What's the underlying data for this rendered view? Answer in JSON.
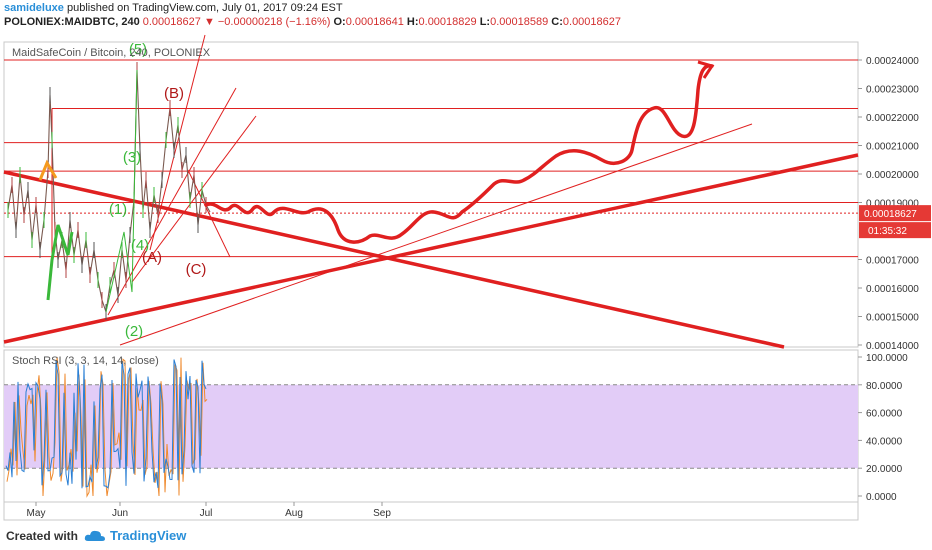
{
  "header": {
    "author": "samideluxe",
    "published_text": "published on TradingView.com, July 01, 2017 09:24 EST",
    "symbol": "POLONIEX:MAIDBTC, 240",
    "last": "0.00018627",
    "change": "▼ −0.00000218 (−1.16%)",
    "o_label": "O:",
    "o": "0.00018641",
    "h_label": "H:",
    "h": "0.00018829",
    "l_label": "L:",
    "l": "0.00018589",
    "c_label": "C:",
    "c": "0.00018627"
  },
  "pane_title": "MaidSafeCoin / Bitcoin, 240, POLONIEX",
  "price_axis": {
    "ticks": [
      "0.00024000",
      "0.00023000",
      "0.00022000",
      "0.00021000",
      "0.00020000",
      "0.00019000",
      "0.00017000",
      "0.00016000",
      "0.00015000",
      "0.00014000"
    ],
    "last_price_badge": "0.00018627",
    "countdown_badge": "01:35:32"
  },
  "time_axis": {
    "ticks": [
      "May",
      "Jun",
      "Jul",
      "Aug",
      "Sep"
    ]
  },
  "wave_labels": {
    "green": [
      "(5)",
      "(3)",
      "(1)",
      "(4)",
      "(2)"
    ],
    "red": [
      "(B)",
      "(A)",
      "(C)"
    ]
  },
  "indicator": {
    "title": "Stoch RSI (3, 3, 14, 14, close)",
    "ticks": [
      "100.0000",
      "80.0000",
      "60.0000",
      "40.0000",
      "20.0000",
      "0.0000"
    ]
  },
  "footer": {
    "created_with": "Created with",
    "brand": "TradingView"
  },
  "colors": {
    "drawing_red": "#e02020",
    "wave_green": "#3ab83a",
    "axis_text": "#333333",
    "band_fill": "#e2ccf7",
    "stoch_k": "#2a7fd4",
    "stoch_d": "#ef8a2e"
  },
  "chart_data": {
    "type": "line",
    "title": "MaidSafeCoin / Bitcoin, 240, POLONIEX",
    "x": [
      "May",
      "Jun",
      "Jul",
      "Aug",
      "Sep"
    ],
    "ylim": [
      0.00014,
      0.000245
    ],
    "price_path": [
      [
        "May",
        0.000195
      ],
      [
        "mid-May",
        0.000172
      ],
      [
        "late-May",
        0.000152
      ],
      [
        "Jun",
        0.000165
      ],
      [
        "Jun 8",
        0.000236
      ],
      [
        "Jun 12",
        0.000168
      ],
      [
        "Jun 20",
        0.000223
      ],
      [
        "Jun 26",
        0.000175
      ],
      [
        "Jul",
        0.000186
      ]
    ],
    "horizontal_levels": [
      0.00024,
      0.000223,
      0.000211,
      0.000201,
      0.00019,
      0.000171
    ],
    "last_price": 0.00018627,
    "stoch_rsi": {
      "ylim": [
        0,
        100
      ],
      "band": [
        20,
        80
      ]
    }
  }
}
